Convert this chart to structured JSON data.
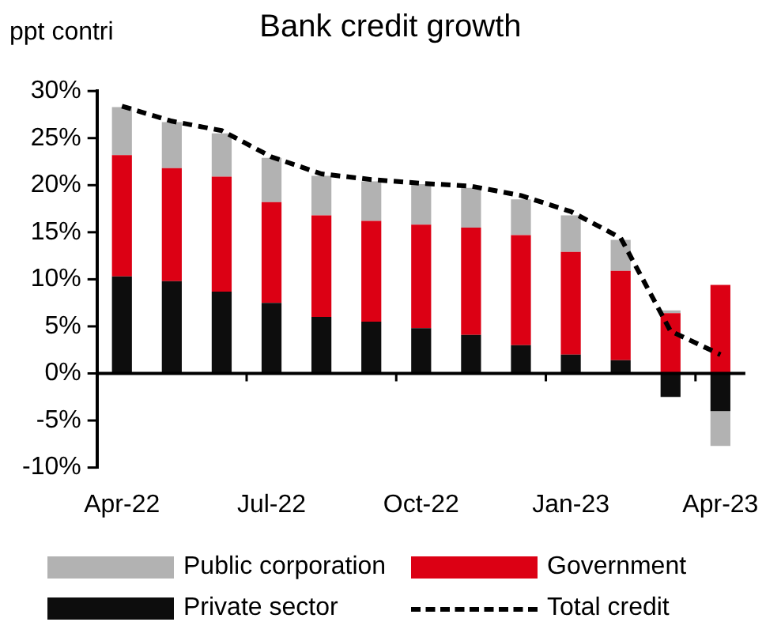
{
  "chart_data": {
    "type": "bar",
    "title": "Bank credit growth",
    "ylabel": "ppt contri",
    "stacked": true,
    "legend": "bottom",
    "categories": [
      "Apr-22",
      null,
      null,
      "Jul-22",
      null,
      null,
      "Oct-22",
      null,
      null,
      "Jan-23",
      null,
      null,
      "Apr-23"
    ],
    "series": [
      {
        "name": "Private sector",
        "color": "#0d0d0d",
        "values": [
          10.3,
          9.8,
          8.7,
          7.5,
          6.0,
          5.5,
          4.8,
          4.1,
          3.0,
          2.0,
          1.4,
          -2.5,
          -4.0
        ]
      },
      {
        "name": "Government",
        "color": "#dc0014",
        "values": [
          12.9,
          12.0,
          12.2,
          10.7,
          10.8,
          10.7,
          11.0,
          11.4,
          11.7,
          10.9,
          9.5,
          6.4,
          9.4
        ]
      },
      {
        "name": "Public corporation",
        "color": "#b2b2b2",
        "values": [
          5.1,
          4.9,
          4.6,
          4.7,
          4.2,
          4.2,
          4.3,
          4.2,
          3.8,
          3.9,
          3.3,
          0.3,
          -3.7
        ]
      },
      {
        "name": "Total credit",
        "type": "line",
        "color": "#000000",
        "line_style": "dashed",
        "values": [
          28.4,
          26.8,
          25.8,
          23.0,
          21.2,
          20.6,
          20.2,
          19.9,
          18.9,
          17.2,
          14.4,
          4.5,
          2.0
        ]
      }
    ],
    "ylim": [
      -10,
      30
    ],
    "yticks": [
      {
        "value": -10,
        "label": "-10%"
      },
      {
        "value": -5,
        "label": "-5%"
      },
      {
        "value": 0,
        "label": "0%"
      },
      {
        "value": 5,
        "label": "5%"
      },
      {
        "value": 10,
        "label": "10%"
      },
      {
        "value": 15,
        "label": "15%"
      },
      {
        "value": 20,
        "label": "20%"
      },
      {
        "value": 25,
        "label": "25%"
      },
      {
        "value": 30,
        "label": "30%"
      }
    ]
  }
}
